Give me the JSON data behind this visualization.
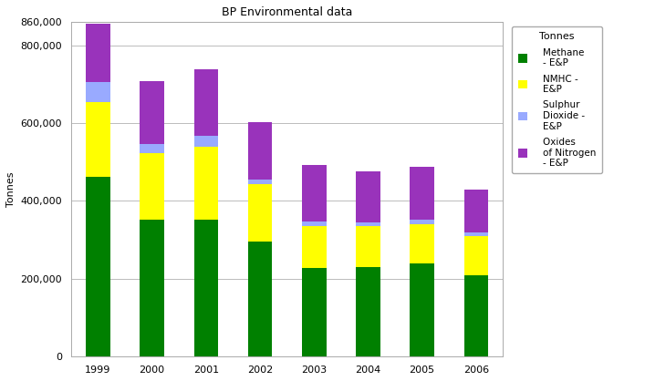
{
  "title": "BP Environmental data",
  "ylabel": "Tonnes",
  "years": [
    "1999",
    "2000",
    "2001",
    "2002",
    "2003",
    "2004",
    "2005",
    "2006"
  ],
  "methane": [
    462000,
    352000,
    352000,
    295000,
    228000,
    230000,
    240000,
    210000
  ],
  "nmhc": [
    192000,
    170000,
    188000,
    148000,
    108000,
    105000,
    100000,
    100000
  ],
  "sulphur_dioxide": [
    52000,
    25000,
    28000,
    12000,
    12000,
    10000,
    12000,
    8000
  ],
  "oxides_nitrogen": [
    148000,
    160000,
    170000,
    148000,
    145000,
    130000,
    135000,
    112000
  ],
  "colors": {
    "methane": "#008000",
    "nmhc": "#FFFF00",
    "sulphur_dioxide": "#99AAFF",
    "oxides_nitrogen": "#9933BB"
  },
  "legend_labels": [
    "    Methane\n    - E&P",
    "    NMHC -\n    E&P",
    "    Sulphur\n    Dioxide -\n    E&P",
    "    Oxides\n    of Nitrogen\n    - E&P"
  ],
  "legend_title": "Tonnes",
  "ylim": [
    0,
    860000
  ],
  "yticks": [
    0,
    200000,
    400000,
    600000,
    800000,
    860000
  ],
  "background_color": "#ffffff",
  "bar_width": 0.45,
  "grid_color": "#bbbbbb",
  "title_fontsize": 9,
  "axis_fontsize": 8,
  "tick_fontsize": 8
}
